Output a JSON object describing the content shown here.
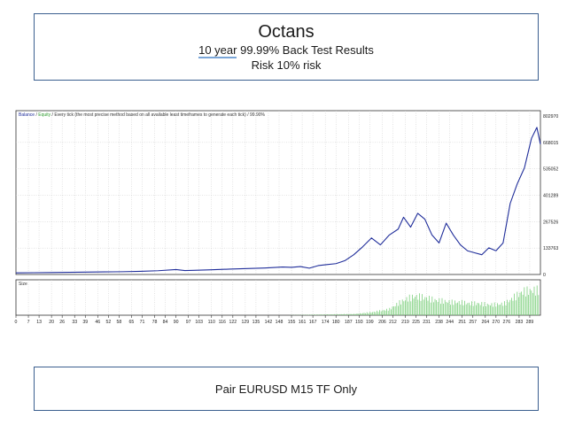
{
  "header": {
    "title": "Octans",
    "line2_prefix": "10 year",
    "line2_suffix": " 99.99% Back Test Results",
    "line3": "Risk 10% risk"
  },
  "footer": {
    "text": "Pair EURUSD M15 TF Only"
  },
  "chart_data": {
    "type": "line",
    "legend": {
      "balance": "Balance",
      "sep1": " / ",
      "equity": "Equity",
      "sep2": " / ",
      "note": "Every tick (the most precise method based on all available least timeframes to generate each tick) / 99.90%",
      "placement": "top-left"
    },
    "colors": {
      "balance": "#1f2d9a",
      "equity": "#2e9b2e",
      "size": "#7ed07e",
      "grid": "#c8c8c8"
    },
    "grid": true,
    "y_ticks": [
      "802970",
      "668015",
      "535052",
      "401289",
      "267526",
      "133763",
      "0"
    ],
    "x_ticks": [
      "0",
      "7",
      "13",
      "20",
      "26",
      "33",
      "39",
      "46",
      "52",
      "58",
      "65",
      "71",
      "78",
      "84",
      "90",
      "97",
      "103",
      "110",
      "116",
      "122",
      "129",
      "135",
      "142",
      "148",
      "155",
      "161",
      "167",
      "174",
      "180",
      "187",
      "193",
      "199",
      "206",
      "212",
      "219",
      "225",
      "231",
      "238",
      "244",
      "251",
      "257",
      "264",
      "270",
      "276",
      "283",
      "289"
    ],
    "xlim": [
      0,
      295
    ],
    "ylim": [
      0,
      802970
    ],
    "series": [
      {
        "name": "Balance",
        "x": [
          0,
          10,
          20,
          30,
          40,
          50,
          60,
          70,
          80,
          90,
          95,
          100,
          110,
          120,
          130,
          140,
          150,
          155,
          160,
          165,
          170,
          175,
          180,
          185,
          190,
          195,
          200,
          205,
          210,
          215,
          218,
          222,
          226,
          230,
          234,
          238,
          242,
          246,
          250,
          254,
          258,
          262,
          266,
          270,
          274,
          278,
          282,
          286,
          290,
          293,
          295
        ],
        "values": [
          8000,
          9000,
          10000,
          11000,
          12000,
          13000,
          14000,
          16000,
          19000,
          25000,
          20000,
          21000,
          24000,
          27000,
          30000,
          33000,
          38000,
          36000,
          40000,
          32000,
          45000,
          50000,
          55000,
          70000,
          100000,
          140000,
          185000,
          150000,
          200000,
          230000,
          290000,
          240000,
          310000,
          280000,
          200000,
          160000,
          260000,
          200000,
          150000,
          120000,
          110000,
          100000,
          135000,
          120000,
          160000,
          360000,
          460000,
          540000,
          690000,
          745000,
          660000
        ]
      }
    ],
    "size_series": {
      "name": "Size",
      "x": [
        0,
        150,
        190,
        200,
        210,
        215,
        220,
        225,
        230,
        235,
        240,
        245,
        250,
        255,
        260,
        265,
        270,
        275,
        280,
        285,
        290,
        295
      ],
      "values": [
        0,
        0,
        2,
        5,
        10,
        20,
        28,
        32,
        30,
        26,
        24,
        22,
        22,
        20,
        20,
        18,
        18,
        20,
        30,
        40,
        42,
        42
      ]
    }
  }
}
